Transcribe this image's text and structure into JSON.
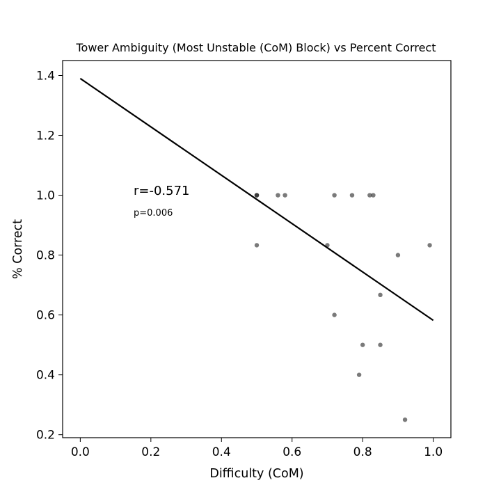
{
  "chart_data": {
    "type": "scatter",
    "title": "Tower Ambiguity (Most Unstable (CoM) Block) vs Percent Correct",
    "xlabel": "Difficulty (CoM)",
    "ylabel": "% Correct",
    "xlim": [
      -0.05,
      1.05
    ],
    "ylim": [
      0.19,
      1.45
    ],
    "xticks": [
      "0.0",
      "0.2",
      "0.4",
      "0.6",
      "0.8",
      "1.0"
    ],
    "yticks": [
      "0.2",
      "0.4",
      "0.6",
      "0.8",
      "1.0",
      "1.2",
      "1.4"
    ],
    "grid": false,
    "points": [
      {
        "x": 0.5,
        "y": 1.0
      },
      {
        "x": 0.5,
        "y": 1.0
      },
      {
        "x": 0.5,
        "y": 1.0
      },
      {
        "x": 0.56,
        "y": 1.0
      },
      {
        "x": 0.58,
        "y": 1.0
      },
      {
        "x": 0.72,
        "y": 1.0
      },
      {
        "x": 0.77,
        "y": 1.0
      },
      {
        "x": 0.82,
        "y": 1.0
      },
      {
        "x": 0.83,
        "y": 1.0
      },
      {
        "x": 0.5,
        "y": 0.833
      },
      {
        "x": 0.7,
        "y": 0.833
      },
      {
        "x": 0.99,
        "y": 0.833
      },
      {
        "x": 0.9,
        "y": 0.8
      },
      {
        "x": 0.85,
        "y": 0.667
      },
      {
        "x": 0.72,
        "y": 0.6
      },
      {
        "x": 0.8,
        "y": 0.5
      },
      {
        "x": 0.85,
        "y": 0.5
      },
      {
        "x": 0.79,
        "y": 0.4
      },
      {
        "x": 0.92,
        "y": 0.25
      }
    ],
    "fit_line": {
      "x": [
        0.0,
        1.0
      ],
      "y": [
        1.39,
        0.582
      ]
    },
    "annotations": {
      "r": "r=-0.571",
      "p": "p=0.006"
    },
    "colors": {
      "points": "#333333",
      "line": "#000000"
    }
  }
}
